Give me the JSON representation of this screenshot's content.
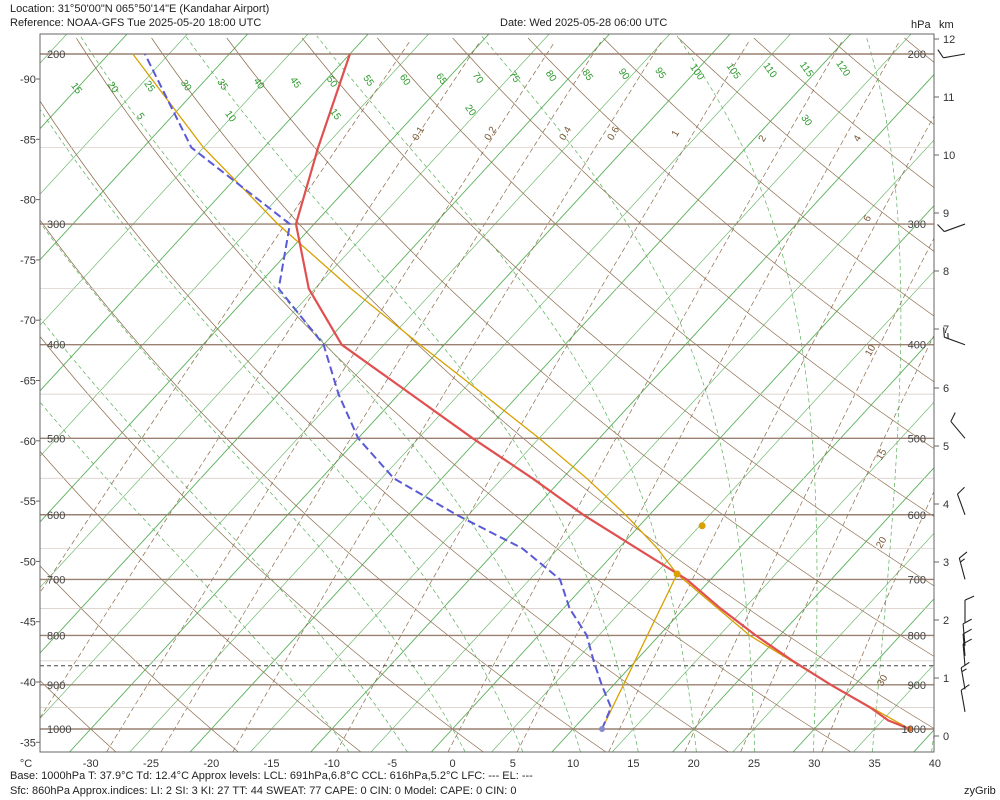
{
  "header": {
    "location": "Location:  31°50'00\"N  065°50'14\"E (Kandahar Airport)",
    "reference": "Reference: NOAA-GFS Tue 2025-05-20 18:00 UTC",
    "date": "Date: Wed 2025-05-28 06:00 UTC",
    "unit_hpa": "hPa",
    "unit_km": "km"
  },
  "footer": {
    "line1": "Base: 1000hPa  T: 37.9°C  Td: 12.4°C      Approx levels:  LCL: 691hPa,6.8°C   CCL: 616hPa,5.2°C   LFC: ---   EL: ---",
    "line2": "Sfc: 860hPa       Approx.indices:  LI: 2   SI: 3   KI: 27   TT: 44   SWEAT: 77     CAPE: 0  CIN: 0          Model: CAPE: 0 CIN: 0",
    "brand": "zyGrib"
  },
  "colors": {
    "temperature": "#e05050",
    "dewpoint": "#5a5ad8",
    "parcel": "#d8a000",
    "isobar": "#b09a8a",
    "isotherm": "#5ab05a",
    "dry_adiabat": "#8a6a4a",
    "moist_adiabat": "#5ab05a",
    "mixing_ratio": "#8a6a4a"
  },
  "chart_data": {
    "type": "skew-t",
    "x_axis_unit": "°C",
    "x_ticks": [
      -30,
      -25,
      -20,
      -15,
      -10,
      -5,
      0,
      5,
      10,
      15,
      20,
      25,
      30,
      35,
      40
    ],
    "left_ticks": [
      -90,
      -85,
      -80,
      -75,
      -70,
      -65,
      -60,
      -55,
      -50,
      -45,
      -40,
      -35
    ],
    "pressure_levels": [
      200,
      300,
      400,
      500,
      600,
      700,
      800,
      900,
      1000
    ],
    "height_km": [
      0,
      1,
      2,
      3,
      4,
      5,
      6,
      7,
      8,
      9,
      10,
      11,
      12
    ],
    "surface_pressure": 860,
    "isotherm_labels": [
      15,
      20,
      25,
      30,
      35,
      40,
      45,
      50,
      55,
      60,
      65,
      70,
      75,
      80,
      85,
      90,
      95,
      100,
      105,
      110,
      115,
      120
    ],
    "moist_labels": [
      5,
      10,
      15,
      20,
      30
    ],
    "mixing_ratio_labels": [
      0.1,
      0.2,
      0.4,
      0.6,
      1,
      2,
      4,
      6,
      10,
      15,
      20,
      30
    ],
    "temperature": {
      "pressure": [
        1000,
        980,
        950,
        900,
        850,
        800,
        750,
        700,
        650,
        600,
        550,
        500,
        450,
        400,
        350,
        300,
        250,
        200
      ],
      "temp": [
        37.9,
        35.5,
        33.0,
        28.0,
        23.0,
        18.0,
        13.0,
        8.0,
        1.5,
        -5.5,
        -12.5,
        -20.5,
        -29.0,
        -38.5,
        -45.5,
        -51.5,
        -55.5,
        -60.0
      ]
    },
    "dewpoint": {
      "pressure": [
        1000,
        950,
        900,
        850,
        800,
        750,
        700,
        650,
        600,
        550,
        500,
        450,
        400,
        350,
        300,
        250,
        200
      ],
      "dewp": [
        12.4,
        11.5,
        9.0,
        6.5,
        4.0,
        0.5,
        -2.5,
        -8.0,
        -16.0,
        -24.0,
        -30.0,
        -35.0,
        -40.0,
        -48.0,
        -52.0,
        -66.0,
        -77.0
      ]
    },
    "parcel": {
      "pressure": [
        1000,
        900,
        800,
        691,
        650,
        600,
        550,
        500,
        450,
        400,
        350,
        300,
        250,
        200
      ],
      "temp": [
        37.9,
        28.0,
        17.5,
        6.8,
        3.2,
        -2.0,
        -8.0,
        -15.0,
        -23.0,
        -32.0,
        -42.0,
        -53.0,
        -65.0,
        -78.0
      ]
    },
    "parcel_moisture": {
      "pressure": [
        1000,
        691
      ],
      "dewp": [
        12.4,
        6.8
      ]
    },
    "marked_points": [
      {
        "name": "LCL",
        "pressure": 691,
        "temp": 6.8
      },
      {
        "name": "CCL",
        "pressure": 616,
        "temp": 5.2
      }
    ],
    "winds": [
      {
        "pressure": 200,
        "dir": 260,
        "speed_kt": 10
      },
      {
        "pressure": 300,
        "dir": 250,
        "speed_kt": 10
      },
      {
        "pressure": 400,
        "dir": 290,
        "speed_kt": 15
      },
      {
        "pressure": 500,
        "dir": 320,
        "speed_kt": 10
      },
      {
        "pressure": 600,
        "dir": 340,
        "speed_kt": 10
      },
      {
        "pressure": 700,
        "dir": 345,
        "speed_kt": 15
      },
      {
        "pressure": 775,
        "dir": 0,
        "speed_kt": 10
      },
      {
        "pressure": 820,
        "dir": 355,
        "speed_kt": 10
      },
      {
        "pressure": 840,
        "dir": 355,
        "speed_kt": 10
      },
      {
        "pressure": 860,
        "dir": 355,
        "speed_kt": 10
      },
      {
        "pressure": 910,
        "dir": 350,
        "speed_kt": 15
      },
      {
        "pressure": 960,
        "dir": 350,
        "speed_kt": 10
      }
    ]
  }
}
